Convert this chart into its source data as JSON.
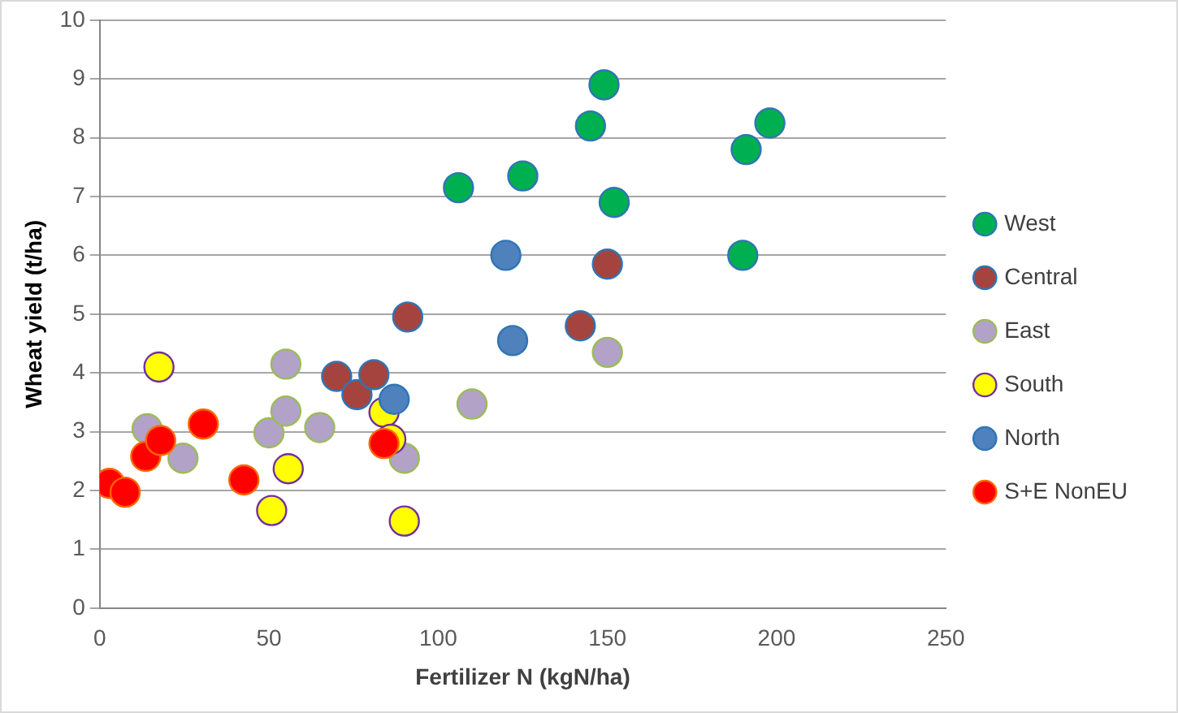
{
  "chart_data": {
    "type": "scatter",
    "xlabel": "Fertilizer N (kgN/ha)",
    "ylabel": "Wheat yield (t/ha)",
    "xlim": [
      0,
      250
    ],
    "xticks": [
      0,
      50,
      100,
      150,
      200,
      250
    ],
    "ylim": [
      0,
      10
    ],
    "yticks": [
      0,
      1,
      2,
      3,
      4,
      5,
      6,
      7,
      8,
      9,
      10
    ],
    "grid": "y",
    "legend": "right",
    "marker": "circle",
    "series": [
      {
        "name": "West",
        "color": "#00b050",
        "x": [
          106,
          125,
          145,
          149,
          152,
          191,
          198,
          190
        ],
        "values": [
          7.15,
          7.35,
          8.2,
          8.9,
          6.9,
          7.8,
          8.25,
          6.0
        ]
      },
      {
        "name": "Central",
        "color": "#a5443f",
        "x": [
          70,
          76,
          81,
          91,
          142,
          150
        ],
        "values": [
          3.94,
          3.63,
          3.97,
          4.95,
          4.8,
          5.85
        ]
      },
      {
        "name": "East",
        "color": "#b3a2c7",
        "x": [
          14,
          24.6,
          50,
          55,
          55,
          65,
          90,
          110,
          150
        ],
        "values": [
          3.05,
          2.55,
          2.98,
          4.15,
          3.35,
          3.07,
          2.55,
          3.47,
          4.35
        ]
      },
      {
        "name": "South",
        "color": "#ffff00",
        "x": [
          17.5,
          55.7,
          50.8,
          90,
          84,
          86
        ],
        "values": [
          4.1,
          2.37,
          1.66,
          1.48,
          3.33,
          2.87
        ]
      },
      {
        "name": "North",
        "color": "#4f81bd",
        "x": [
          87,
          120,
          122
        ],
        "values": [
          3.55,
          6.0,
          4.55
        ]
      },
      {
        "name": "S+E NonEU",
        "color": "#ff0000",
        "x": [
          2.9,
          7.5,
          13.6,
          18,
          30.6,
          42.6,
          84
        ],
        "values": [
          2.12,
          1.97,
          2.58,
          2.85,
          3.13,
          2.18,
          2.8
        ]
      }
    ]
  }
}
